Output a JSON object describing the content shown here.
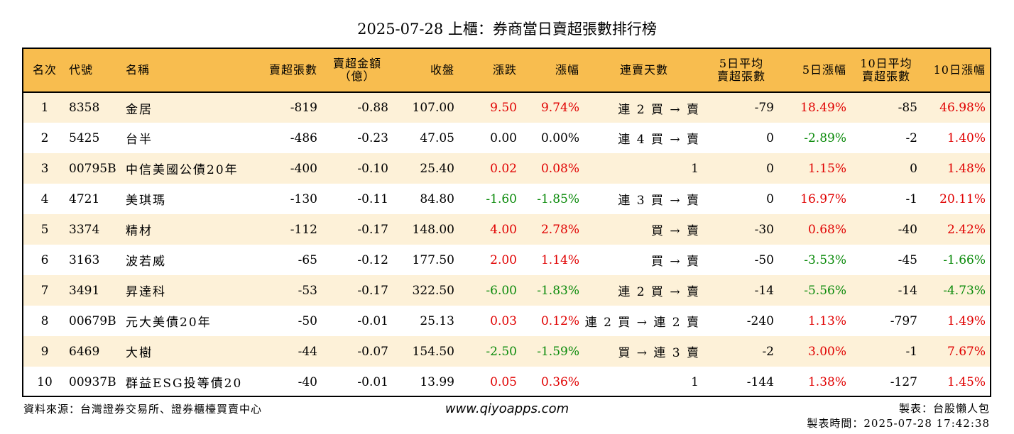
{
  "title": "2025-07-28 上櫃：券商當日賣超張數排行榜",
  "headers": {
    "rank": "名次",
    "code": "代號",
    "name": "名稱",
    "sell_lots": "賣超張數",
    "sell_amount_1": "賣超金額",
    "sell_amount_2": "（億）",
    "close": "收盤",
    "change": "漲跌",
    "pct": "漲幅",
    "days": "連賣天數",
    "avg5_1": "5日平均",
    "avg5_2": "賣超張數",
    "pct5": "5日漲幅",
    "avg10_1": "10日平均",
    "avg10_2": "賣超張數",
    "pct10": "10日漲幅"
  },
  "rows": [
    {
      "rank": "1",
      "code": "8358",
      "name": "金居",
      "sell_lots": "-819",
      "sell_amount": "-0.88",
      "close": "107.00",
      "change": "9.50",
      "change_dir": "up",
      "pct": "9.74%",
      "pct_dir": "up",
      "days": "連 2 買 → 賣",
      "avg5": "-79",
      "pct5": "18.49%",
      "pct5_dir": "up",
      "avg10": "-85",
      "pct10": "46.98%",
      "pct10_dir": "up"
    },
    {
      "rank": "2",
      "code": "5425",
      "name": "台半",
      "sell_lots": "-486",
      "sell_amount": "-0.23",
      "close": "47.05",
      "change": "0.00",
      "change_dir": "flat",
      "pct": "0.00%",
      "pct_dir": "flat",
      "days": "連 4 買 → 賣",
      "avg5": "0",
      "pct5": "-2.89%",
      "pct5_dir": "down",
      "avg10": "-2",
      "pct10": "1.40%",
      "pct10_dir": "up"
    },
    {
      "rank": "3",
      "code": "00795B",
      "name": "中信美國公債20年",
      "sell_lots": "-400",
      "sell_amount": "-0.10",
      "close": "25.40",
      "change": "0.02",
      "change_dir": "up",
      "pct": "0.08%",
      "pct_dir": "up",
      "days": "1",
      "avg5": "0",
      "pct5": "1.15%",
      "pct5_dir": "up",
      "avg10": "0",
      "pct10": "1.48%",
      "pct10_dir": "up"
    },
    {
      "rank": "4",
      "code": "4721",
      "name": "美琪瑪",
      "sell_lots": "-130",
      "sell_amount": "-0.11",
      "close": "84.80",
      "change": "-1.60",
      "change_dir": "down",
      "pct": "-1.85%",
      "pct_dir": "down",
      "days": "連 3 買 → 賣",
      "avg5": "0",
      "pct5": "16.97%",
      "pct5_dir": "up",
      "avg10": "-1",
      "pct10": "20.11%",
      "pct10_dir": "up"
    },
    {
      "rank": "5",
      "code": "3374",
      "name": "精材",
      "sell_lots": "-112",
      "sell_amount": "-0.17",
      "close": "148.00",
      "change": "4.00",
      "change_dir": "up",
      "pct": "2.78%",
      "pct_dir": "up",
      "days": "買 → 賣",
      "avg5": "-30",
      "pct5": "0.68%",
      "pct5_dir": "up",
      "avg10": "-40",
      "pct10": "2.42%",
      "pct10_dir": "up"
    },
    {
      "rank": "6",
      "code": "3163",
      "name": "波若威",
      "sell_lots": "-65",
      "sell_amount": "-0.12",
      "close": "177.50",
      "change": "2.00",
      "change_dir": "up",
      "pct": "1.14%",
      "pct_dir": "up",
      "days": "買 → 賣",
      "avg5": "-50",
      "pct5": "-3.53%",
      "pct5_dir": "down",
      "avg10": "-45",
      "pct10": "-1.66%",
      "pct10_dir": "down"
    },
    {
      "rank": "7",
      "code": "3491",
      "name": "昇達科",
      "sell_lots": "-53",
      "sell_amount": "-0.17",
      "close": "322.50",
      "change": "-6.00",
      "change_dir": "down",
      "pct": "-1.83%",
      "pct_dir": "down",
      "days": "連 2 買 → 賣",
      "avg5": "-14",
      "pct5": "-5.56%",
      "pct5_dir": "down",
      "avg10": "-14",
      "pct10": "-4.73%",
      "pct10_dir": "down"
    },
    {
      "rank": "8",
      "code": "00679B",
      "name": "元大美債20年",
      "sell_lots": "-50",
      "sell_amount": "-0.01",
      "close": "25.13",
      "change": "0.03",
      "change_dir": "up",
      "pct": "0.12%",
      "pct_dir": "up",
      "days": "連 2 買 → 連 2 賣",
      "avg5": "-240",
      "pct5": "1.13%",
      "pct5_dir": "up",
      "avg10": "-797",
      "pct10": "1.49%",
      "pct10_dir": "up"
    },
    {
      "rank": "9",
      "code": "6469",
      "name": "大樹",
      "sell_lots": "-44",
      "sell_amount": "-0.07",
      "close": "154.50",
      "change": "-2.50",
      "change_dir": "down",
      "pct": "-1.59%",
      "pct_dir": "down",
      "days": "買 → 連 3 賣",
      "avg5": "-2",
      "pct5": "3.00%",
      "pct5_dir": "up",
      "avg10": "-1",
      "pct10": "7.67%",
      "pct10_dir": "up"
    },
    {
      "rank": "10",
      "code": "00937B",
      "name": "群益ESG投等債20",
      "sell_lots": "-40",
      "sell_amount": "-0.01",
      "close": "13.99",
      "change": "0.05",
      "change_dir": "up",
      "pct": "0.36%",
      "pct_dir": "up",
      "days": "1",
      "avg5": "-144",
      "pct5": "1.38%",
      "pct5_dir": "up",
      "avg10": "-127",
      "pct10": "1.45%",
      "pct10_dir": "up"
    }
  ],
  "footer": {
    "source": "資料來源：台灣證券交易所、證券櫃檯買賣中心",
    "website": "www.qiyoapps.com",
    "author": "製表：台股懶人包",
    "time": "製表時間：2025-07-28 17:42:38"
  },
  "colors": {
    "header_bg": "#f8bd4f",
    "stripe_bg": "#fdf1d8",
    "up": "#e00000",
    "down": "#0a8a0a"
  }
}
